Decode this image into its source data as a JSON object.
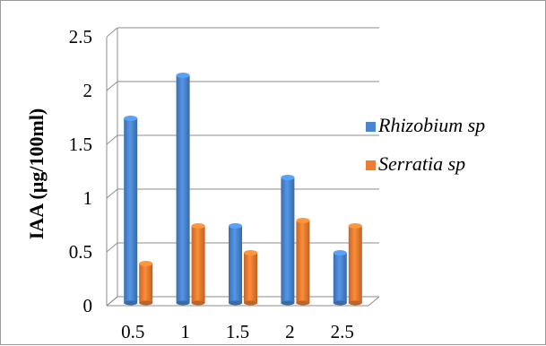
{
  "chart_data": {
    "type": "bar",
    "categories": [
      "0.5",
      "1",
      "1.5",
      "2",
      "2.5"
    ],
    "series": [
      {
        "name": "Rhizobium sp",
        "values": [
          1.7,
          2.1,
          0.7,
          1.15,
          0.45
        ],
        "color": "#4a86d0"
      },
      {
        "name": "Serratia sp",
        "values": [
          0.35,
          0.7,
          0.45,
          0.75,
          0.7
        ],
        "color": "#ee7d31"
      }
    ],
    "ylabel": "IAA (µg/100ml)",
    "xlabel": "",
    "yticks": [
      "0",
      "0.5",
      "1",
      "1.5",
      "2",
      "2.5"
    ],
    "ylim": [
      0,
      2.5
    ],
    "grid": true,
    "style": "3d-clustered-column",
    "legend_position": "right"
  }
}
